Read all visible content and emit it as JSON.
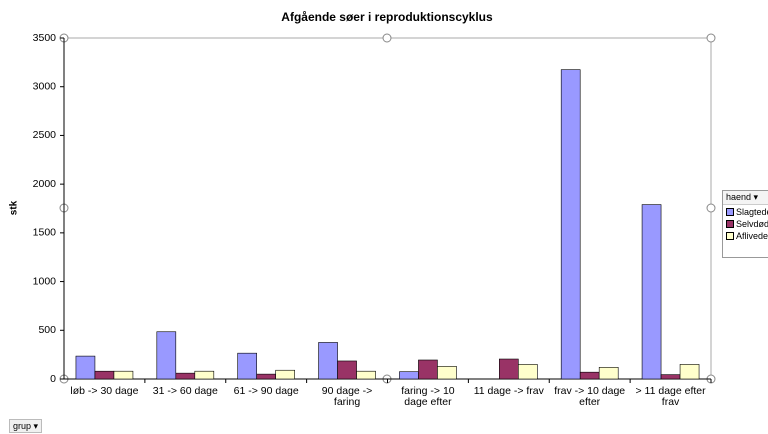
{
  "chart_data": {
    "type": "bar",
    "title": "Afgående søer i reproduktionscyklus",
    "ylabel": "stk",
    "legend_title": "haend",
    "field_button": "grup",
    "categories": [
      "løb -> 30 dage",
      "31 -> 60 dage",
      "61 -> 90 dage",
      "90 dage -> faring",
      "faring -> 10 dage efter",
      "11 dage -> frav",
      "frav -> 10 dage efter",
      "> 11 dage efter frav"
    ],
    "series": [
      {
        "name": "Slagtede",
        "color": "#9999ff",
        "values": [
          235,
          485,
          265,
          375,
          75,
          0,
          3175,
          1790
        ]
      },
      {
        "name": "Selvdøde",
        "color": "#993366",
        "values": [
          80,
          60,
          50,
          185,
          195,
          205,
          70,
          45
        ]
      },
      {
        "name": "Aflivede",
        "color": "#ffffcc",
        "values": [
          80,
          80,
          90,
          80,
          130,
          150,
          120,
          150
        ]
      }
    ],
    "ylim": [
      0,
      3500
    ],
    "yticks": [
      0,
      500,
      1000,
      1500,
      2000,
      2500,
      3000,
      3500
    ],
    "grid": false
  }
}
